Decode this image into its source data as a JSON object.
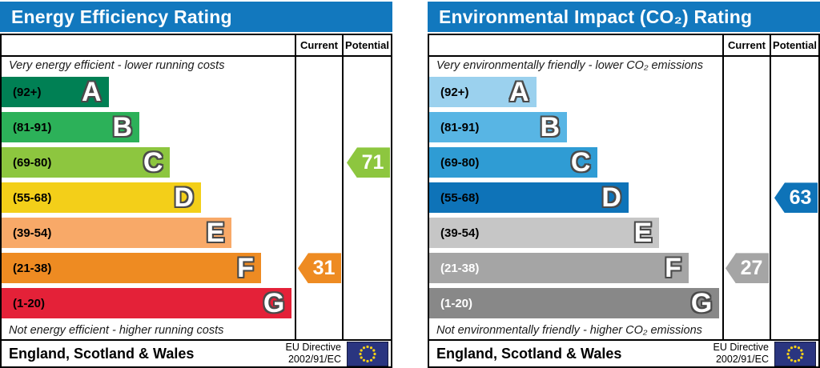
{
  "panels": [
    {
      "title": "Energy Efficiency Rating",
      "columns": {
        "current": "Current",
        "potential": "Potential"
      },
      "top_caption": "Very energy efficient - lower running costs",
      "bottom_caption": "Not energy efficient - higher running costs",
      "bands": [
        {
          "range": "(92+)",
          "letter": "A",
          "color": "#008054",
          "text_color": "#000000",
          "width_pct": 36.5
        },
        {
          "range": "(81-91)",
          "letter": "B",
          "color": "#2cb159",
          "text_color": "#000000",
          "width_pct": 47.0
        },
        {
          "range": "(69-80)",
          "letter": "C",
          "color": "#8dc63f",
          "text_color": "#000000",
          "width_pct": 57.5
        },
        {
          "range": "(55-68)",
          "letter": "D",
          "color": "#f3cf19",
          "text_color": "#000000",
          "width_pct": 68.0
        },
        {
          "range": "(39-54)",
          "letter": "E",
          "color": "#f8a968",
          "text_color": "#000000",
          "width_pct": 78.5
        },
        {
          "range": "(21-38)",
          "letter": "F",
          "color": "#ee8b22",
          "text_color": "#000000",
          "width_pct": 88.5
        },
        {
          "range": "(1-20)",
          "letter": "G",
          "color": "#e42138",
          "text_color": "#000000",
          "width_pct": 99.0
        }
      ],
      "current": {
        "value": "31",
        "band_index": 5,
        "color": "#ee8b22"
      },
      "potential": {
        "value": "71",
        "band_index": 2,
        "color": "#8dc63f"
      },
      "footer_region": "England, Scotland & Wales",
      "footer_directive": "EU Directive\n2002/91/EC"
    },
    {
      "title": "Environmental Impact (CO₂) Rating",
      "columns": {
        "current": "Current",
        "potential": "Potential"
      },
      "top_caption": "Very environmentally friendly - lower CO₂ emissions",
      "bottom_caption": "Not environmentally friendly - higher CO₂ emissions",
      "bands": [
        {
          "range": "(92+)",
          "letter": "A",
          "color": "#9bd1ee",
          "text_color": "#000000",
          "width_pct": 36.5
        },
        {
          "range": "(81-91)",
          "letter": "B",
          "color": "#58b5e4",
          "text_color": "#000000",
          "width_pct": 47.0
        },
        {
          "range": "(69-80)",
          "letter": "C",
          "color": "#2f9cd4",
          "text_color": "#000000",
          "width_pct": 57.5
        },
        {
          "range": "(55-68)",
          "letter": "D",
          "color": "#0e73b8",
          "text_color": "#000000",
          "width_pct": 68.0
        },
        {
          "range": "(39-54)",
          "letter": "E",
          "color": "#c6c6c6",
          "text_color": "#000000",
          "width_pct": 78.5
        },
        {
          "range": "(21-38)",
          "letter": "F",
          "color": "#a5a5a5",
          "text_color": "#ffffff",
          "width_pct": 88.5
        },
        {
          "range": "(1-20)",
          "letter": "G",
          "color": "#888888",
          "text_color": "#ffffff",
          "width_pct": 99.0
        }
      ],
      "current": {
        "value": "27",
        "band_index": 5,
        "color": "#a5a5a5"
      },
      "potential": {
        "value": "63",
        "band_index": 3,
        "color": "#0e73b8"
      },
      "footer_region": "England, Scotland & Wales",
      "footer_directive": "EU Directive\n2002/91/EC"
    }
  ],
  "colors": {
    "header_bg": "#1278be",
    "border": "#000000",
    "eu_flag_bg": "#2a3580",
    "eu_flag_stars": "#f7d117"
  },
  "chart_data": [
    {
      "type": "bar",
      "title": "Energy Efficiency Rating",
      "categories": [
        "A (92+)",
        "B (81-91)",
        "C (69-80)",
        "D (55-68)",
        "E (39-54)",
        "F (21-38)",
        "G (1-20)"
      ],
      "current": 31,
      "current_band": "F",
      "potential": 71,
      "potential_band": "C",
      "footnote_top": "Very energy efficient - lower running costs",
      "footnote_bottom": "Not energy efficient - higher running costs"
    },
    {
      "type": "bar",
      "title": "Environmental Impact (CO₂) Rating",
      "categories": [
        "A (92+)",
        "B (81-91)",
        "C (69-80)",
        "D (55-68)",
        "E (39-54)",
        "F (21-38)",
        "G (1-20)"
      ],
      "current": 27,
      "current_band": "F",
      "potential": 63,
      "potential_band": "D",
      "footnote_top": "Very environmentally friendly - lower CO₂ emissions",
      "footnote_bottom": "Not environmentally friendly - higher CO₂ emissions"
    }
  ]
}
